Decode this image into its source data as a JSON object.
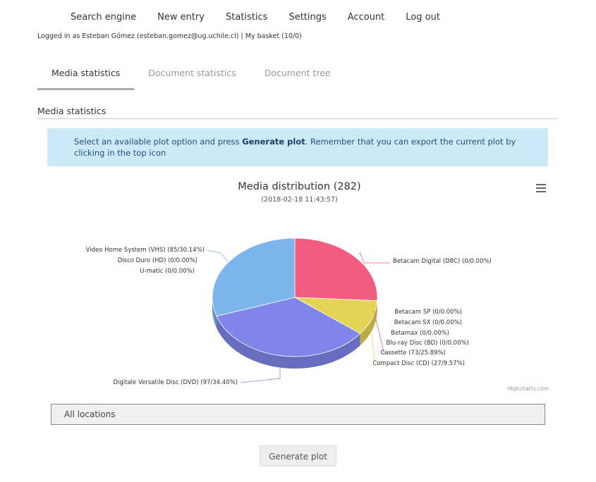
{
  "nav": {
    "items": [
      "Search engine",
      "New entry",
      "Statistics",
      "Settings",
      "Account",
      "Log out"
    ]
  },
  "login": {
    "prefix": "Logged in as Esteban Gómez (esteban.gomez@ug.uchile.cl) | ",
    "basket": "My basket (10/0)"
  },
  "tabs": [
    "Media statistics",
    "Document statistics",
    "Document tree"
  ],
  "section_title": "Media statistics",
  "info": {
    "text1": "Select an available plot option and press ",
    "bold": "Generate plot",
    "text2": ". Remember that you can export the current plot by clicking in the top icon"
  },
  "chart_data": {
    "type": "pie",
    "title": "Media distribution (282)",
    "subtitle": "(2018-02-18 11:43:57)",
    "credits": "Highcharts.com",
    "slices": [
      {
        "name": "Betacam Digital (D8C)",
        "count": 0,
        "percent": 0.0,
        "color": "#f15c80"
      },
      {
        "name": "Betacam SP",
        "count": 0,
        "percent": 0.0,
        "color": "#e4d354"
      },
      {
        "name": "Betacam SX",
        "count": 0,
        "percent": 0.0,
        "color": "#2b908f"
      },
      {
        "name": "Betamax",
        "count": 0,
        "percent": 0.0,
        "color": "#f45b5b"
      },
      {
        "name": "Blu-ray Disc (BD)",
        "count": 0,
        "percent": 0.0,
        "color": "#91e8e1"
      },
      {
        "name": "Cassette",
        "count": 73,
        "percent": 25.89,
        "color": "#f15c80"
      },
      {
        "name": "Compact Disc (CD)",
        "count": 27,
        "percent": 9.57,
        "color": "#e4d354"
      },
      {
        "name": "Digitale Versatile Disc (DVD)",
        "count": 97,
        "percent": 34.4,
        "color": "#8085e9"
      },
      {
        "name": "U-matic",
        "count": 0,
        "percent": 0.0,
        "color": "#7cb5ec"
      },
      {
        "name": "Disco Duro (HD)",
        "count": 0,
        "percent": 0.0,
        "color": "#7cb5ec"
      },
      {
        "name": "Video Home System (VHS)",
        "count": 85,
        "percent": 30.14,
        "color": "#7cb5ec"
      }
    ],
    "labels": [
      "Betacam Digital (D8C) (0/0.00%)",
      "Betacam SP (0/0.00%)",
      "Betacam SX (0/0.00%)",
      "Betamax (0/0.00%)",
      "Blu-ray Disc (BD) (0/0.00%)",
      "Cassette (73/25.89%)",
      "Compact Disc (CD) (27/9.57%)",
      "Digitale Versatile Disc (DVD) (97/34.40%)",
      "U-matic (0/0.00%)",
      "Disco Duro (HD) (0/0.00%)",
      "Video Home System (VHS) (85/30.14%)"
    ]
  },
  "location_select": "All locations",
  "generate_button": "Generate plot"
}
